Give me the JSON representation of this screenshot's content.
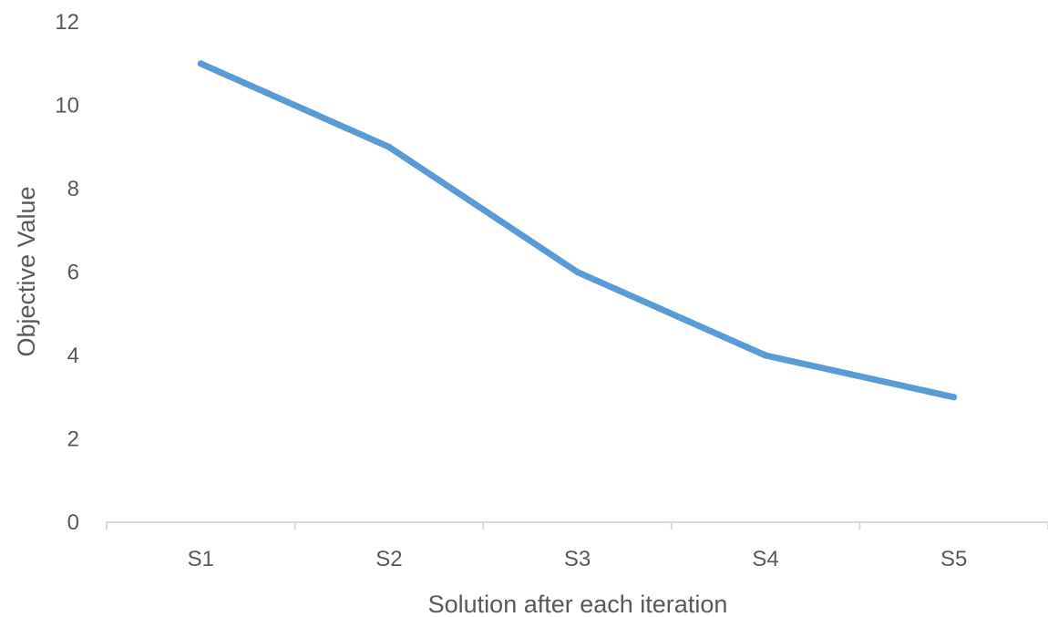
{
  "chart_data": {
    "type": "line",
    "categories": [
      "S1",
      "S2",
      "S3",
      "S4",
      "S5"
    ],
    "series": [
      {
        "values": [
          11,
          9,
          6,
          4,
          3
        ]
      }
    ],
    "xlabel": "Solution after each iteration",
    "ylabel": "Objective Value",
    "ylim": [
      0,
      12
    ],
    "yticks": [
      0,
      2,
      4,
      6,
      8,
      10,
      12
    ],
    "grid": false,
    "legend": "none",
    "colors": {
      "line": "#5b9bd5",
      "axis": "#d9d9d9",
      "text": "#595959"
    }
  }
}
